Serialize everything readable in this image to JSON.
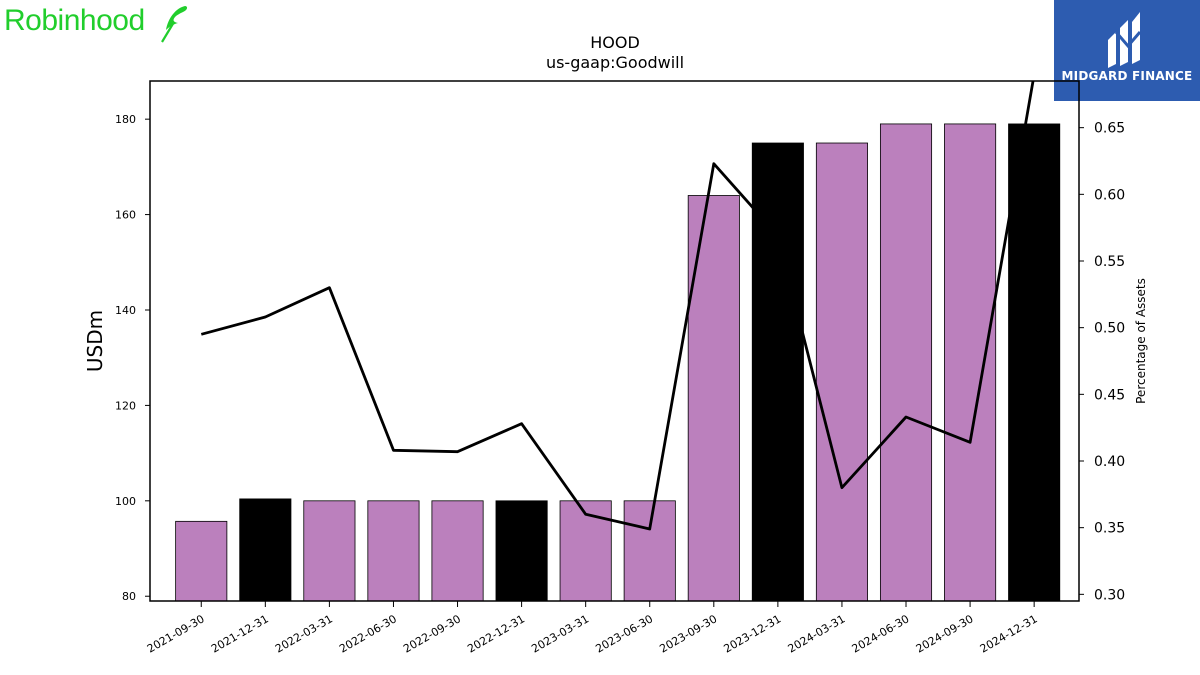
{
  "logos": {
    "left": {
      "wordmark": "Robinhood",
      "icon": "feather-icon",
      "color": "#21ce2c"
    },
    "right": {
      "brand": "MIDGARD FINANCE",
      "icon": "midgard-m-icon",
      "background": "#2d5cb0"
    }
  },
  "chart_data": {
    "type": "bar",
    "title": "HOOD",
    "subtitle": "us-gaap:Goodwill",
    "ylabel": "USDm",
    "y2label": "Percentage of Assets",
    "ylim": [
      79,
      188
    ],
    "y2lim": [
      0.295,
      0.685
    ],
    "yticks": [
      80,
      100,
      120,
      140,
      160,
      180
    ],
    "y2ticks": [
      0.3,
      0.35,
      0.4,
      0.45,
      0.5,
      0.55,
      0.6,
      0.65
    ],
    "categories": [
      "2021-09-30",
      "2021-12-31",
      "2022-03-31",
      "2022-06-30",
      "2022-09-30",
      "2022-12-31",
      "2023-03-31",
      "2023-06-30",
      "2023-09-30",
      "2023-12-31",
      "2024-03-31",
      "2024-06-30",
      "2024-09-30",
      "2024-12-31"
    ],
    "series": [
      {
        "type": "bar",
        "values": [
          95.7,
          100.4,
          100.0,
          100.0,
          100.0,
          100.0,
          100.0,
          100.0,
          164.0,
          175.0,
          175.0,
          179.0,
          179.0,
          179.0
        ],
        "colors": [
          "#bb80bd",
          "#000000",
          "#bb80bd",
          "#bb80bd",
          "#bb80bd",
          "#000000",
          "#bb80bd",
          "#bb80bd",
          "#bb80bd",
          "#000000",
          "#bb80bd",
          "#bb80bd",
          "#bb80bd",
          "#000000"
        ]
      },
      {
        "type": "line",
        "axis": "right",
        "color": "#000000",
        "values": [
          0.495,
          0.508,
          0.53,
          0.408,
          0.407,
          0.428,
          0.36,
          0.349,
          0.623,
          0.569,
          0.38,
          0.433,
          0.414,
          0.69
        ]
      }
    ],
    "grid": false,
    "legend": "none"
  }
}
